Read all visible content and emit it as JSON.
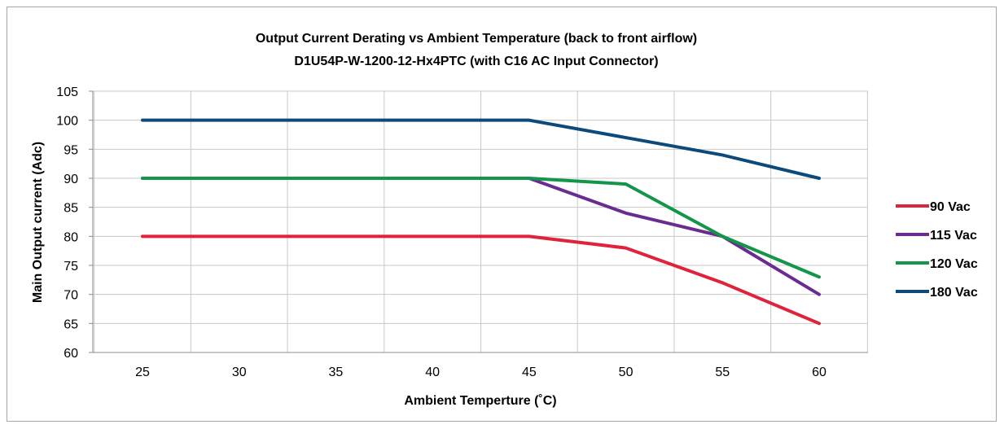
{
  "chart_data": {
    "type": "line",
    "title": "Output Current Derating vs Ambient Temperature  (back to front airflow)",
    "subtitle": "D1U54P-W-1200-12-Hx4PTC (with C16 AC Input Connector)",
    "xlabel": "Ambient Temperture (˚C)",
    "ylabel": "Main Output current (Adc)",
    "x": [
      25,
      30,
      35,
      40,
      45,
      50,
      55,
      60
    ],
    "ylim": [
      60,
      105
    ],
    "yticks": [
      60,
      65,
      70,
      75,
      80,
      85,
      90,
      95,
      100,
      105
    ],
    "grid": true,
    "legend_position": "right",
    "series": [
      {
        "name": "90 Vac",
        "color": "#e0233c",
        "values": [
          80,
          80,
          80,
          80,
          80,
          78,
          72,
          65
        ]
      },
      {
        "name": "115 Vac",
        "color": "#6a2c91",
        "values": [
          90,
          90,
          90,
          90,
          90,
          84,
          80,
          70
        ]
      },
      {
        "name": "120 Vac",
        "color": "#14964a",
        "values": [
          90,
          90,
          90,
          90,
          90,
          89,
          80,
          73
        ]
      },
      {
        "name": "180 Vac",
        "color": "#0b4a7a",
        "values": [
          100,
          100,
          100,
          100,
          100,
          97,
          94,
          90
        ]
      }
    ]
  }
}
